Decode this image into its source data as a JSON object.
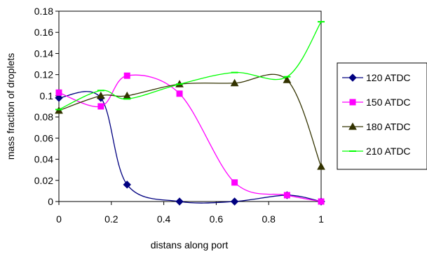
{
  "chart_data": {
    "type": "line",
    "xlabel": "distans along port",
    "ylabel": "mass fraction of droplets",
    "xlim": [
      0,
      1
    ],
    "ylim": [
      0,
      0.18
    ],
    "x_ticks": [
      "0",
      "0.2",
      "0.4",
      "0.6",
      "0.8",
      "1"
    ],
    "y_ticks": [
      "0",
      "0.02",
      "0.04",
      "0.06",
      "0.08",
      "0.1",
      "0.12",
      "0.14",
      "0.16",
      "0.18"
    ],
    "grid": false,
    "smooth": true,
    "legend_position": "right",
    "series": [
      {
        "name": "120 ATDC",
        "color": "#000080",
        "marker": "diamond",
        "x": [
          0,
          0.16,
          0.26,
          0.46,
          0.67,
          0.87,
          1
        ],
        "y": [
          0.098,
          0.098,
          0.016,
          0.0,
          0.0,
          0.006,
          0.0
        ]
      },
      {
        "name": "150 ATDC",
        "color": "#ff00ff",
        "marker": "square",
        "x": [
          0,
          0.16,
          0.26,
          0.46,
          0.67,
          0.87,
          1
        ],
        "y": [
          0.103,
          0.09,
          0.119,
          0.102,
          0.018,
          0.006,
          0.0
        ]
      },
      {
        "name": "180 ATDC",
        "color": "#333300",
        "marker": "triangle",
        "x": [
          0,
          0.16,
          0.26,
          0.46,
          0.67,
          0.87,
          1
        ],
        "y": [
          0.086,
          0.1,
          0.1,
          0.111,
          0.112,
          0.115,
          0.033
        ]
      },
      {
        "name": "210 ATDC",
        "color": "#00ff00",
        "marker": "dash",
        "x": [
          0,
          0.16,
          0.26,
          0.46,
          0.67,
          0.87,
          1
        ],
        "y": [
          0.087,
          0.105,
          0.097,
          0.111,
          0.122,
          0.118,
          0.17
        ]
      }
    ]
  }
}
